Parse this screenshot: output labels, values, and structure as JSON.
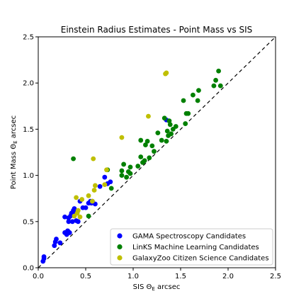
{
  "chart_data": {
    "type": "scatter",
    "title": "Einstein Radius Estimates - Point Mass vs SIS",
    "xlabel": "SIS Θ",
    "xlabel_sub": "E",
    "xlabel_suffix": " arcsec",
    "ylabel": "Point Mass Θ",
    "ylabel_sub": "E",
    "ylabel_suffix": " arcsec",
    "xlim": [
      0,
      2.5
    ],
    "ylim": [
      0,
      2.5
    ],
    "xticks": [
      "0.0",
      "0.5",
      "1.0",
      "1.5",
      "2.0",
      "2.5"
    ],
    "yticks": [
      "0.0",
      "0.5",
      "1.0",
      "1.5",
      "2.0",
      "2.5"
    ],
    "grid": false,
    "legend_position": "lower-right",
    "reference_line": {
      "style": "dashed",
      "from": [
        0,
        0
      ],
      "to": [
        2.5,
        2.5
      ]
    },
    "series": [
      {
        "name": "GAMA Spectroscopy Candidates",
        "color": "#0000ff",
        "points": [
          [
            0.05,
            0.07
          ],
          [
            0.06,
            0.1
          ],
          [
            0.06,
            0.12
          ],
          [
            0.17,
            0.24
          ],
          [
            0.18,
            0.28
          ],
          [
            0.19,
            0.31
          ],
          [
            0.23,
            0.27
          ],
          [
            0.28,
            0.38
          ],
          [
            0.28,
            0.55
          ],
          [
            0.3,
            0.36
          ],
          [
            0.31,
            0.4
          ],
          [
            0.32,
            0.5
          ],
          [
            0.32,
            0.54
          ],
          [
            0.33,
            0.38
          ],
          [
            0.34,
            0.56
          ],
          [
            0.35,
            0.59
          ],
          [
            0.36,
            0.5
          ],
          [
            0.37,
            0.62
          ],
          [
            0.38,
            0.58
          ],
          [
            0.38,
            0.64
          ],
          [
            0.4,
            0.51
          ],
          [
            0.41,
            0.6
          ],
          [
            0.42,
            0.5
          ],
          [
            0.44,
            0.72
          ],
          [
            0.47,
            0.65
          ],
          [
            0.5,
            0.65
          ],
          [
            0.53,
            0.7
          ],
          [
            0.55,
            0.72
          ],
          [
            0.56,
            0.7
          ],
          [
            0.57,
            0.72
          ],
          [
            0.6,
            0.69
          ],
          [
            0.65,
            0.88
          ],
          [
            0.7,
            0.98
          ],
          [
            0.73,
            0.91
          ],
          [
            0.76,
            0.93
          ],
          [
            1.35,
            1.6
          ]
        ]
      },
      {
        "name": "LinKS Machine Learning Candidates",
        "color": "#008000",
        "points": [
          [
            0.37,
            1.18
          ],
          [
            0.53,
            0.56
          ],
          [
            0.73,
            1.06
          ],
          [
            0.77,
            0.86
          ],
          [
            0.88,
            1.0
          ],
          [
            0.88,
            1.05
          ],
          [
            0.9,
            1.12
          ],
          [
            0.93,
            0.98
          ],
          [
            0.95,
            1.04
          ],
          [
            0.97,
            1.02
          ],
          [
            0.97,
            1.09
          ],
          [
            1.05,
            1.1
          ],
          [
            1.08,
            1.2
          ],
          [
            1.08,
            1.38
          ],
          [
            1.1,
            1.14
          ],
          [
            1.12,
            1.16
          ],
          [
            1.13,
            1.33
          ],
          [
            1.15,
            1.37
          ],
          [
            1.17,
            1.19
          ],
          [
            1.2,
            1.32
          ],
          [
            1.22,
            1.26
          ],
          [
            1.26,
            1.46
          ],
          [
            1.3,
            1.38
          ],
          [
            1.33,
            1.62
          ],
          [
            1.35,
            1.37
          ],
          [
            1.36,
            1.48
          ],
          [
            1.37,
            1.43
          ],
          [
            1.38,
            1.59
          ],
          [
            1.39,
            1.55
          ],
          [
            1.4,
            1.45
          ],
          [
            1.42,
            1.5
          ],
          [
            1.45,
            1.53
          ],
          [
            1.53,
            1.81
          ],
          [
            1.55,
            1.56
          ],
          [
            1.56,
            1.67
          ],
          [
            1.58,
            1.67
          ],
          [
            1.63,
            1.87
          ],
          [
            1.68,
            1.81
          ],
          [
            1.69,
            1.92
          ],
          [
            1.85,
            1.97
          ],
          [
            1.87,
            2.03
          ],
          [
            1.9,
            2.13
          ],
          [
            1.92,
            1.97
          ]
        ]
      },
      {
        "name": "GalaxyZoo Citizen Science Candidates",
        "color": "#bfbf00",
        "points": [
          [
            0.38,
            0.56
          ],
          [
            0.4,
            0.76
          ],
          [
            0.41,
            0.59
          ],
          [
            0.42,
            0.62
          ],
          [
            0.44,
            0.55
          ],
          [
            0.46,
            0.74
          ],
          [
            0.53,
            0.78
          ],
          [
            0.57,
            0.72
          ],
          [
            0.58,
            1.18
          ],
          [
            0.59,
            0.84
          ],
          [
            0.6,
            0.89
          ],
          [
            0.7,
            0.9
          ],
          [
            0.72,
            1.06
          ],
          [
            0.88,
            1.41
          ],
          [
            1.16,
            1.64
          ],
          [
            1.34,
            2.1
          ],
          [
            1.35,
            2.11
          ]
        ]
      }
    ]
  }
}
